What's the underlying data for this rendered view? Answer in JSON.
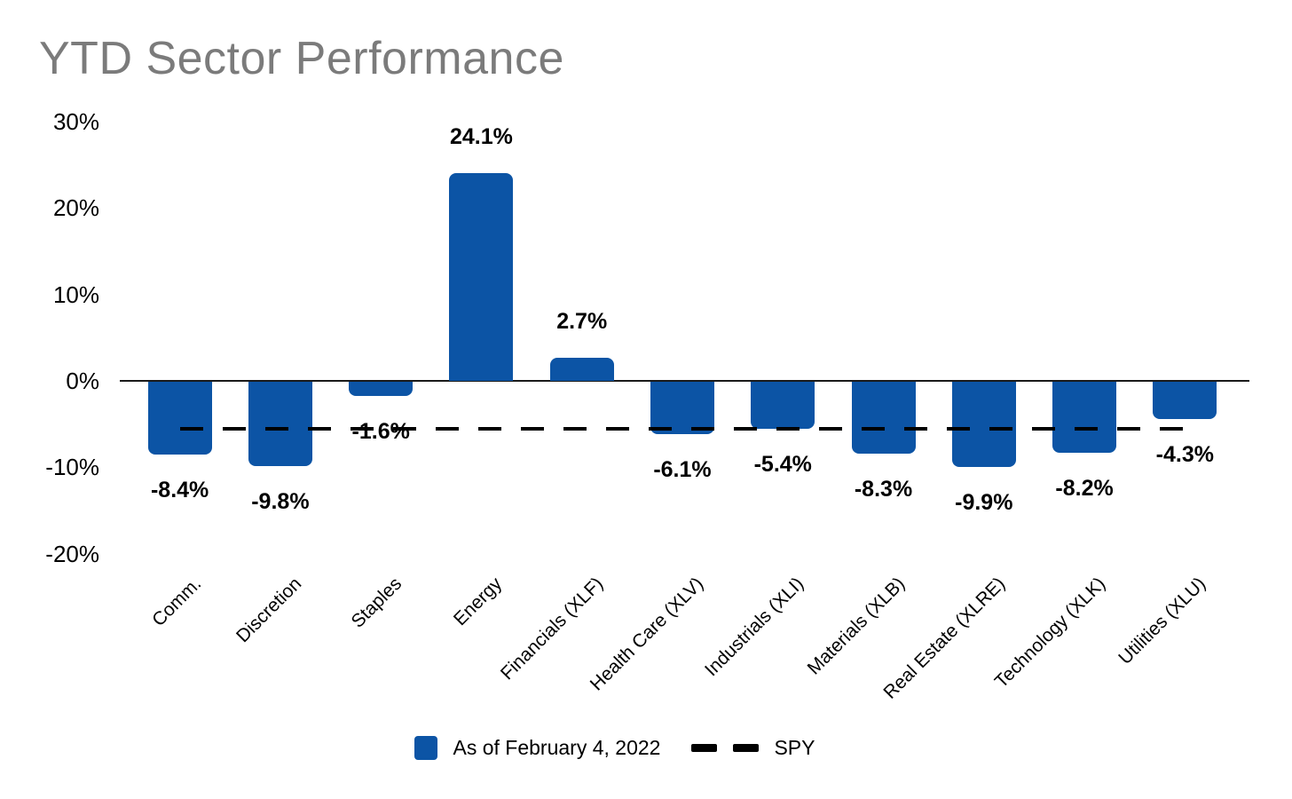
{
  "title": "YTD Sector Performance",
  "chart_data": {
    "type": "bar",
    "title": "YTD Sector Performance",
    "categories": [
      "Comm.",
      "Discretion",
      "Staples",
      "Energy",
      "Financials (XLF)",
      "Health Care (XLV)",
      "Industrials (XLI)",
      "Materials (XLB)",
      "Real Estate (XLRE)",
      "Technology (XLK)",
      "Utilities (XLU)"
    ],
    "series": [
      {
        "name": "As of February 4, 2022",
        "values": [
          -8.4,
          -9.8,
          -1.6,
          24.1,
          2.7,
          -6.1,
          -5.4,
          -8.3,
          -9.9,
          -8.2,
          -4.3
        ]
      }
    ],
    "value_labels": [
      "-8.4%",
      "-9.8%",
      "-1.6%",
      "24.1%",
      "2.7%",
      "-6.1%",
      "-5.4%",
      "-8.3%",
      "-9.9%",
      "-8.2%",
      "-4.3%"
    ],
    "y_ticks": [
      {
        "label": "30%",
        "value": 30
      },
      {
        "label": "20%",
        "value": 20
      },
      {
        "label": "10%",
        "value": 10
      },
      {
        "label": "0%",
        "value": 0
      },
      {
        "label": "-10%",
        "value": -10
      },
      {
        "label": "-20%",
        "value": -20
      }
    ],
    "ylim": [
      -20,
      30
    ],
    "xlabel": "",
    "ylabel": "",
    "grid": false,
    "legend_position": "bottom-center",
    "reference_line": {
      "name": "SPY",
      "value": -5.6,
      "style": "dashed"
    },
    "legend": [
      {
        "label": "As of February 4, 2022",
        "type": "square",
        "color": "#0c54a5"
      },
      {
        "label": "SPY",
        "type": "dashes",
        "color": "#000000"
      }
    ],
    "colors": {
      "bar": "#0c54a5",
      "title": "#7b7b7b",
      "axis": "#1a1a1a",
      "reference_line": "#000000",
      "labels": "#000000"
    }
  }
}
